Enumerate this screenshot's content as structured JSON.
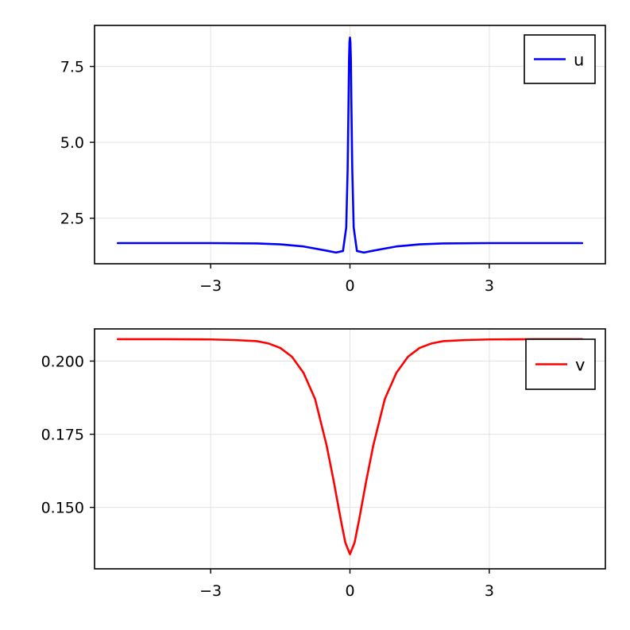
{
  "chart_data": [
    {
      "type": "line",
      "title": "",
      "xlabel": "",
      "ylabel": "",
      "xlim": [
        -5.5,
        5.5
      ],
      "ylim": [
        1.0,
        8.85
      ],
      "xticks": [
        {
          "value": -3,
          "label": "−3"
        },
        {
          "value": 0,
          "label": "0"
        },
        {
          "value": 3,
          "label": "3"
        }
      ],
      "yticks": [
        {
          "value": 2.5,
          "label": "2.5"
        },
        {
          "value": 5.0,
          "label": "5.0"
        },
        {
          "value": 7.5,
          "label": "7.5"
        }
      ],
      "grid": true,
      "legend_position": "top-right",
      "series": [
        {
          "name": "u",
          "color": "#0000ff",
          "x": [
            -5.0,
            -4.0,
            -3.0,
            -2.0,
            -1.5,
            -1.0,
            -0.75,
            -0.5,
            -0.3,
            -0.15,
            -0.08,
            -0.05,
            -0.03,
            -0.02,
            -0.01,
            0.0,
            0.01,
            0.02,
            0.03,
            0.05,
            0.08,
            0.15,
            0.3,
            0.5,
            0.75,
            1.0,
            1.5,
            2.0,
            3.0,
            4.0,
            5.0
          ],
          "y": [
            1.68,
            1.68,
            1.68,
            1.67,
            1.64,
            1.57,
            1.5,
            1.43,
            1.37,
            1.42,
            2.2,
            4.1,
            6.4,
            7.7,
            8.3,
            8.45,
            8.3,
            7.7,
            6.4,
            4.1,
            2.2,
            1.42,
            1.37,
            1.43,
            1.5,
            1.57,
            1.64,
            1.67,
            1.68,
            1.68,
            1.68
          ]
        }
      ]
    },
    {
      "type": "line",
      "title": "",
      "xlabel": "",
      "ylabel": "",
      "xlim": [
        -5.5,
        5.5
      ],
      "ylim": [
        0.129,
        0.211
      ],
      "xticks": [
        {
          "value": -3,
          "label": "−3"
        },
        {
          "value": 0,
          "label": "0"
        },
        {
          "value": 3,
          "label": "3"
        }
      ],
      "yticks": [
        {
          "value": 0.15,
          "label": "0.150"
        },
        {
          "value": 0.175,
          "label": "0.175"
        },
        {
          "value": 0.2,
          "label": "0.200"
        }
      ],
      "grid": true,
      "legend_position": "top-right",
      "series": [
        {
          "name": "v",
          "color": "#ff0000",
          "x": [
            -5.0,
            -4.0,
            -3.0,
            -2.5,
            -2.0,
            -1.75,
            -1.5,
            -1.25,
            -1.0,
            -0.75,
            -0.5,
            -0.35,
            -0.2,
            -0.1,
            0.0,
            0.1,
            0.2,
            0.35,
            0.5,
            0.75,
            1.0,
            1.25,
            1.5,
            1.75,
            2.0,
            2.5,
            3.0,
            4.0,
            5.0
          ],
          "y": [
            0.2075,
            0.2075,
            0.2074,
            0.2072,
            0.2068,
            0.206,
            0.2045,
            0.2015,
            0.196,
            0.187,
            0.171,
            0.159,
            0.146,
            0.138,
            0.134,
            0.138,
            0.146,
            0.159,
            0.171,
            0.187,
            0.196,
            0.2015,
            0.2045,
            0.206,
            0.2068,
            0.2072,
            0.2074,
            0.2075,
            0.2075
          ]
        }
      ]
    }
  ]
}
